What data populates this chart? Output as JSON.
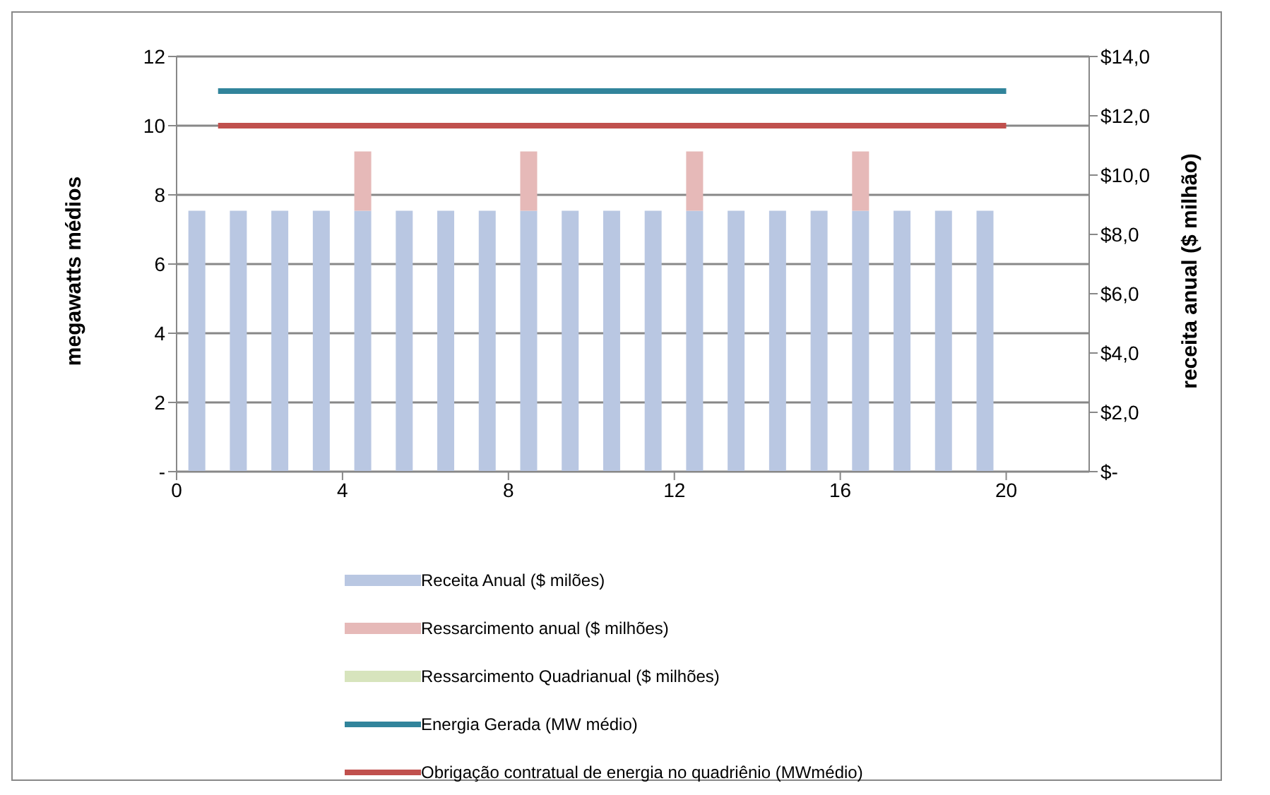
{
  "chart_data": {
    "type": "bar",
    "stacked": true,
    "ylabel": "megawatts médios",
    "y2label": "receita anual ($ milhão)",
    "xlim": [
      0,
      22
    ],
    "xticks": [
      0,
      4,
      8,
      12,
      16,
      20
    ],
    "ylim": [
      0,
      12
    ],
    "yticks": [
      {
        "value": 0,
        "label": "-"
      },
      2,
      4,
      6,
      8,
      10,
      12
    ],
    "y2lim": [
      0,
      14
    ],
    "y2ticks": [
      {
        "value": 0,
        "label": "$-"
      },
      {
        "value": 2,
        "label": "$2,0"
      },
      {
        "value": 4,
        "label": "$4,0"
      },
      {
        "value": 6,
        "label": "$6,0"
      },
      {
        "value": 8,
        "label": "$8,0"
      },
      {
        "value": 10,
        "label": "$10,0"
      },
      {
        "value": 12,
        "label": "$12,0"
      },
      {
        "value": 14,
        "label": "$14,0"
      }
    ],
    "grid": "y",
    "legend": "bottom",
    "marker": "none",
    "line_style": "solid",
    "series": [
      {
        "name": "Receita Anual ($ milões)",
        "axis": "y2",
        "color": "#b9c7e2",
        "x": [
          0.5,
          1.5,
          2.5,
          3.5,
          4.5,
          5.5,
          6.5,
          7.5,
          8.5,
          9.5,
          10.5,
          11.5,
          12.5,
          13.5,
          14.5,
          15.5,
          16.5,
          17.5,
          18.5,
          19.5
        ],
        "values": [
          8.8,
          8.8,
          8.8,
          8.8,
          8.8,
          8.8,
          8.8,
          8.8,
          8.8,
          8.8,
          8.8,
          8.8,
          8.8,
          8.8,
          8.8,
          8.8,
          8.8,
          8.8,
          8.8,
          8.8
        ]
      },
      {
        "name": "Ressarcimento anual ($ milhões)",
        "axis": "y2",
        "color": "#e6b9b8",
        "x": [
          4.5,
          8.5,
          12.5,
          16.5
        ],
        "values": [
          2.0,
          2.0,
          2.0,
          2.0
        ]
      },
      {
        "name": "Ressarcimento Quadrianual ($ milhões)",
        "axis": "y2",
        "color": "#d7e4bd"
      },
      {
        "name": "Energia Gerada (MW médio)",
        "type": "line",
        "color": "#31849b",
        "x": [
          1,
          20
        ],
        "values": [
          11,
          11
        ]
      },
      {
        "name": "Obrigação contratual de energia no quadriênio (MWmédio)",
        "type": "line",
        "color": "#c0504d",
        "x": [
          1,
          20
        ],
        "values": [
          10,
          10
        ]
      }
    ]
  }
}
